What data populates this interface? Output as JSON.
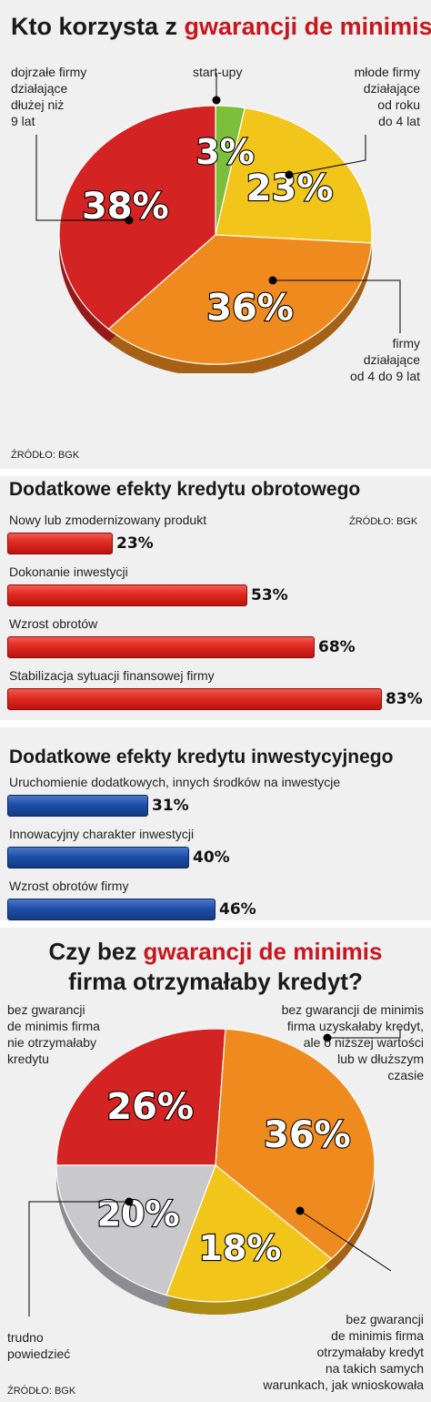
{
  "chart_data": [
    {
      "type": "pie",
      "title_pre": "Kto korzysta z ",
      "title_hl": "gwarancji de minimis?",
      "categories": [
        "start-upy",
        "młode firmy działające od roku do 4 lat",
        "firmy działające od 4 do 9 lat",
        "dojrzałe firmy działające dłużej niż 9 lat"
      ],
      "values": [
        3,
        23,
        36,
        38
      ],
      "value_labels": [
        "3%",
        "23%",
        "36%",
        "38%"
      ],
      "colors": [
        "#7bbf3a",
        "#f2c51b",
        "#ef8a1e",
        "#d42323"
      ],
      "source": "ŹRÓDŁO: BGK",
      "labels": {
        "startups": [
          "start-upy"
        ],
        "young": [
          "młode firmy",
          "działające",
          "od roku",
          "do 4 lat"
        ],
        "mid": [
          "firmy",
          "działające",
          "od 4 do 9 lat"
        ],
        "mature": [
          "dojrzałe firmy",
          "działające",
          "dłużej niż",
          "9 lat"
        ]
      }
    },
    {
      "type": "bar",
      "title": "Dodatkowe efekty kredytu obrotowego",
      "source": "ŹRÓDŁO: BGK",
      "categories": [
        "Nowy lub zmodernizowany produkt",
        "Dokonanie inwestycji",
        "Wzrost obrotów",
        "Stabilizacja sytuacji finansowej firmy"
      ],
      "values": [
        23,
        53,
        68,
        83
      ],
      "value_labels": [
        "23%",
        "53%",
        "68%",
        "83%"
      ],
      "color": "#d42323"
    },
    {
      "type": "bar",
      "title": "Dodatkowe efekty kredytu inwestycyjnego",
      "categories": [
        "Uruchomienie dodatkowych, innych środków na inwestycje",
        "Innowacyjny charakter inwestycji",
        "Wzrost obrotów firmy"
      ],
      "values": [
        31,
        40,
        46
      ],
      "value_labels": [
        "31%",
        "40%",
        "46%"
      ],
      "color": "#1f4fa8"
    },
    {
      "type": "pie",
      "title_l1_pre": "Czy bez ",
      "title_l1_hl": "gwarancji de minimis",
      "title_l2": "firma otrzymałaby kredyt?",
      "categories": [
        "bez gwarancji de minimis firma nie otrzymałaby kredytu",
        "bez gwarancji de minimis firma uzyskałaby kredyt, ale o niższej wartości lub w dłuższym czasie",
        "bez gwarancji de minimis firma otrzymałaby kredyt na takich samych warunkach, jak wnioskowała",
        "trudno powiedzieć"
      ],
      "values": [
        26,
        36,
        18,
        20
      ],
      "value_labels": [
        "26%",
        "36%",
        "18%",
        "20%"
      ],
      "colors": [
        "#d42323",
        "#ef8a1e",
        "#f2c51b",
        "#c9c9cc"
      ],
      "source": "ŹRÓDŁO: BGK",
      "labels": {
        "no": [
          "bez gwarancji",
          "de minimis firma",
          "nie otrzymałaby",
          "kredytu"
        ],
        "lower": [
          "bez gwarancji de minimis",
          "firma uzyskałaby kredyt,",
          "ale o niższej wartości",
          "lub w dłuższym",
          "czasie"
        ],
        "same": [
          "bez gwarancji",
          "de minimis firma",
          "otrzymałaby kredyt",
          "na takich samych",
          "warunkach, jak wnioskowała"
        ],
        "hard": [
          "trudno",
          "powiedzieć"
        ]
      }
    }
  ]
}
